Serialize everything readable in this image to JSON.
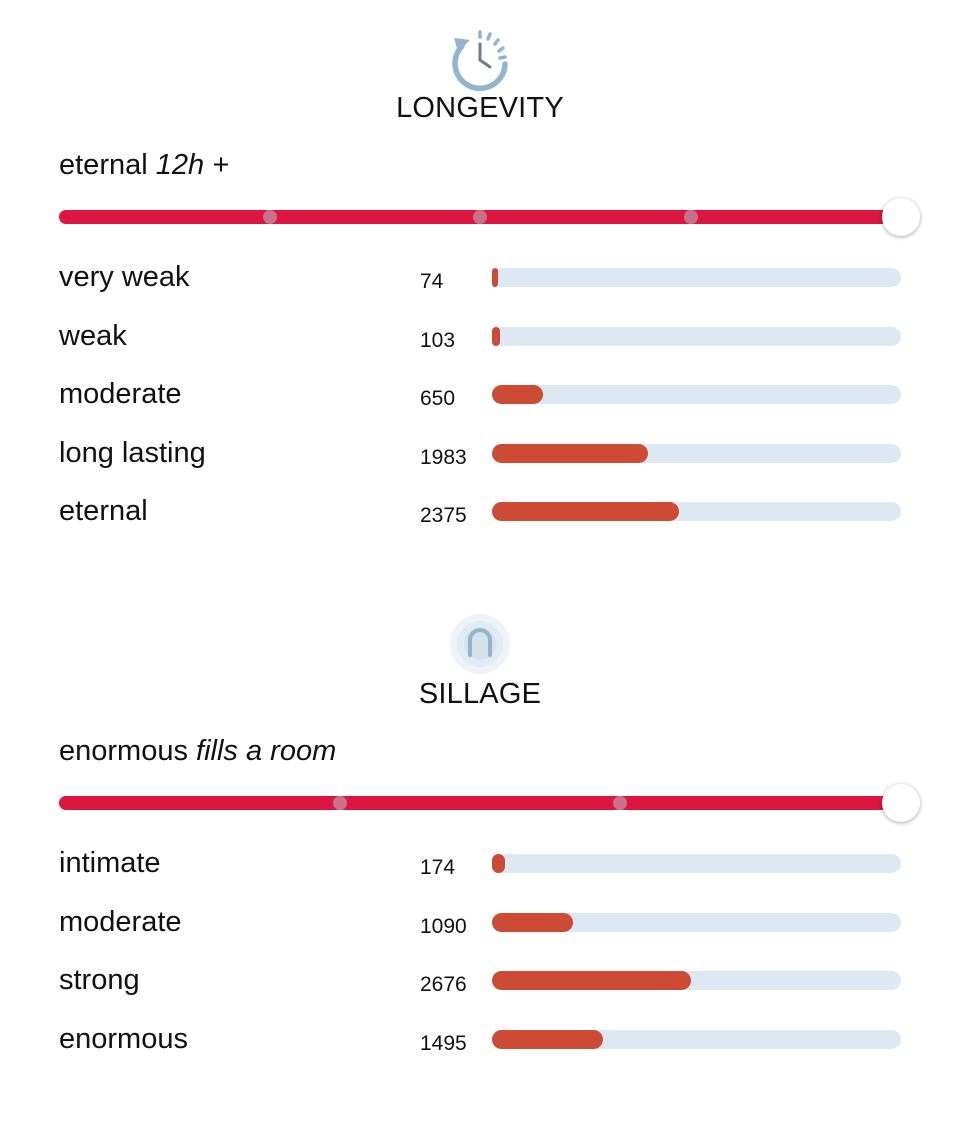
{
  "colors": {
    "slider_track": "#dc1640",
    "slider_tick": "#c9718a",
    "bar_fill": "#cd4a35",
    "bar_track": "#dde8f3",
    "icon": "#94b3cc"
  },
  "longevity": {
    "icon": "clock-rewind-icon",
    "title": "LONGEVITY",
    "summary_main": "eternal",
    "summary_detail": "12h +",
    "slider_steps": 5,
    "slider_value_index": 4,
    "max_value": 5200,
    "rows": [
      {
        "label": "very weak",
        "count": "74",
        "value": 74
      },
      {
        "label": "weak",
        "count": "103",
        "value": 103
      },
      {
        "label": "moderate",
        "count": "650",
        "value": 650
      },
      {
        "label": "long lasting",
        "count": "1983",
        "value": 1983
      },
      {
        "label": "eternal",
        "count": "2375",
        "value": 2375
      }
    ]
  },
  "sillage": {
    "icon": "radiating-person-icon",
    "title": "SILLAGE",
    "summary_main": "enormous",
    "summary_detail": "fills a room",
    "slider_steps": 4,
    "slider_value_index": 3,
    "max_value": 5500,
    "rows": [
      {
        "label": "intimate",
        "count": "174",
        "value": 174
      },
      {
        "label": "moderate",
        "count": "1090",
        "value": 1090
      },
      {
        "label": "strong",
        "count": "2676",
        "value": 2676
      },
      {
        "label": "enormous",
        "count": "1495",
        "value": 1495
      }
    ]
  }
}
